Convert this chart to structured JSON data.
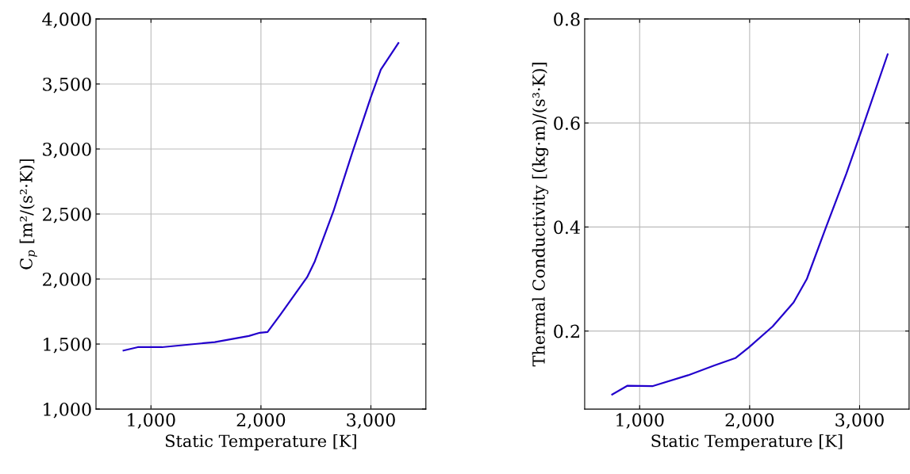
{
  "chart_data": [
    {
      "type": "line",
      "xlabel": "Static Temperature [K]",
      "ylabel": "C$_{p}$ [m²/(s²·K)]",
      "grid": true,
      "xlim": [
        500,
        3500
      ],
      "xticks": [
        {
          "value": 1000,
          "label": "1,000"
        },
        {
          "value": 2000,
          "label": "2,000"
        },
        {
          "value": 3000,
          "label": "3,000"
        }
      ],
      "ylim": [
        1000,
        4000
      ],
      "yticks": [
        {
          "value": 1000,
          "label": "1,000"
        },
        {
          "value": 1500,
          "label": "1,500"
        },
        {
          "value": 2000,
          "label": "2,000"
        },
        {
          "value": 2500,
          "label": "2,500"
        },
        {
          "value": 3000,
          "label": "3,000"
        },
        {
          "value": 3500,
          "label": "3,500"
        },
        {
          "value": 4000,
          "label": "4,000"
        }
      ],
      "series": [
        {
          "color": "#2200cc",
          "x": [
            750,
            880,
            1100,
            1580,
            1890,
            1990,
            2060,
            2180,
            2420,
            2490,
            2660,
            2830,
            3000,
            3090,
            3250
          ],
          "values": [
            1450,
            1476,
            1476,
            1515,
            1562,
            1587,
            1593,
            1730,
            2014,
            2136,
            2523,
            2970,
            3400,
            3610,
            3815
          ]
        }
      ]
    },
    {
      "type": "line",
      "xlabel": "Static Temperature [K]",
      "ylabel": "Thermal Conductivity [(kg·m)/(s³·K)]",
      "grid": true,
      "xlim": [
        500,
        3450
      ],
      "xticks": [
        {
          "value": 1000,
          "label": "1,000"
        },
        {
          "value": 2000,
          "label": "2,000"
        },
        {
          "value": 3000,
          "label": "3,000"
        }
      ],
      "ylim": [
        0.05,
        0.8
      ],
      "yticks": [
        0.2,
        0.4,
        0.6,
        0.8
      ],
      "series": [
        {
          "color": "#2200cc",
          "x": [
            750,
            890,
            1115,
            1440,
            1680,
            1870,
            1990,
            2210,
            2400,
            2520,
            2690,
            2880,
            3025,
            3255
          ],
          "values": [
            0.078,
            0.095,
            0.094,
            0.115,
            0.134,
            0.148,
            0.168,
            0.209,
            0.255,
            0.3,
            0.397,
            0.503,
            0.59,
            0.732
          ]
        }
      ]
    }
  ]
}
